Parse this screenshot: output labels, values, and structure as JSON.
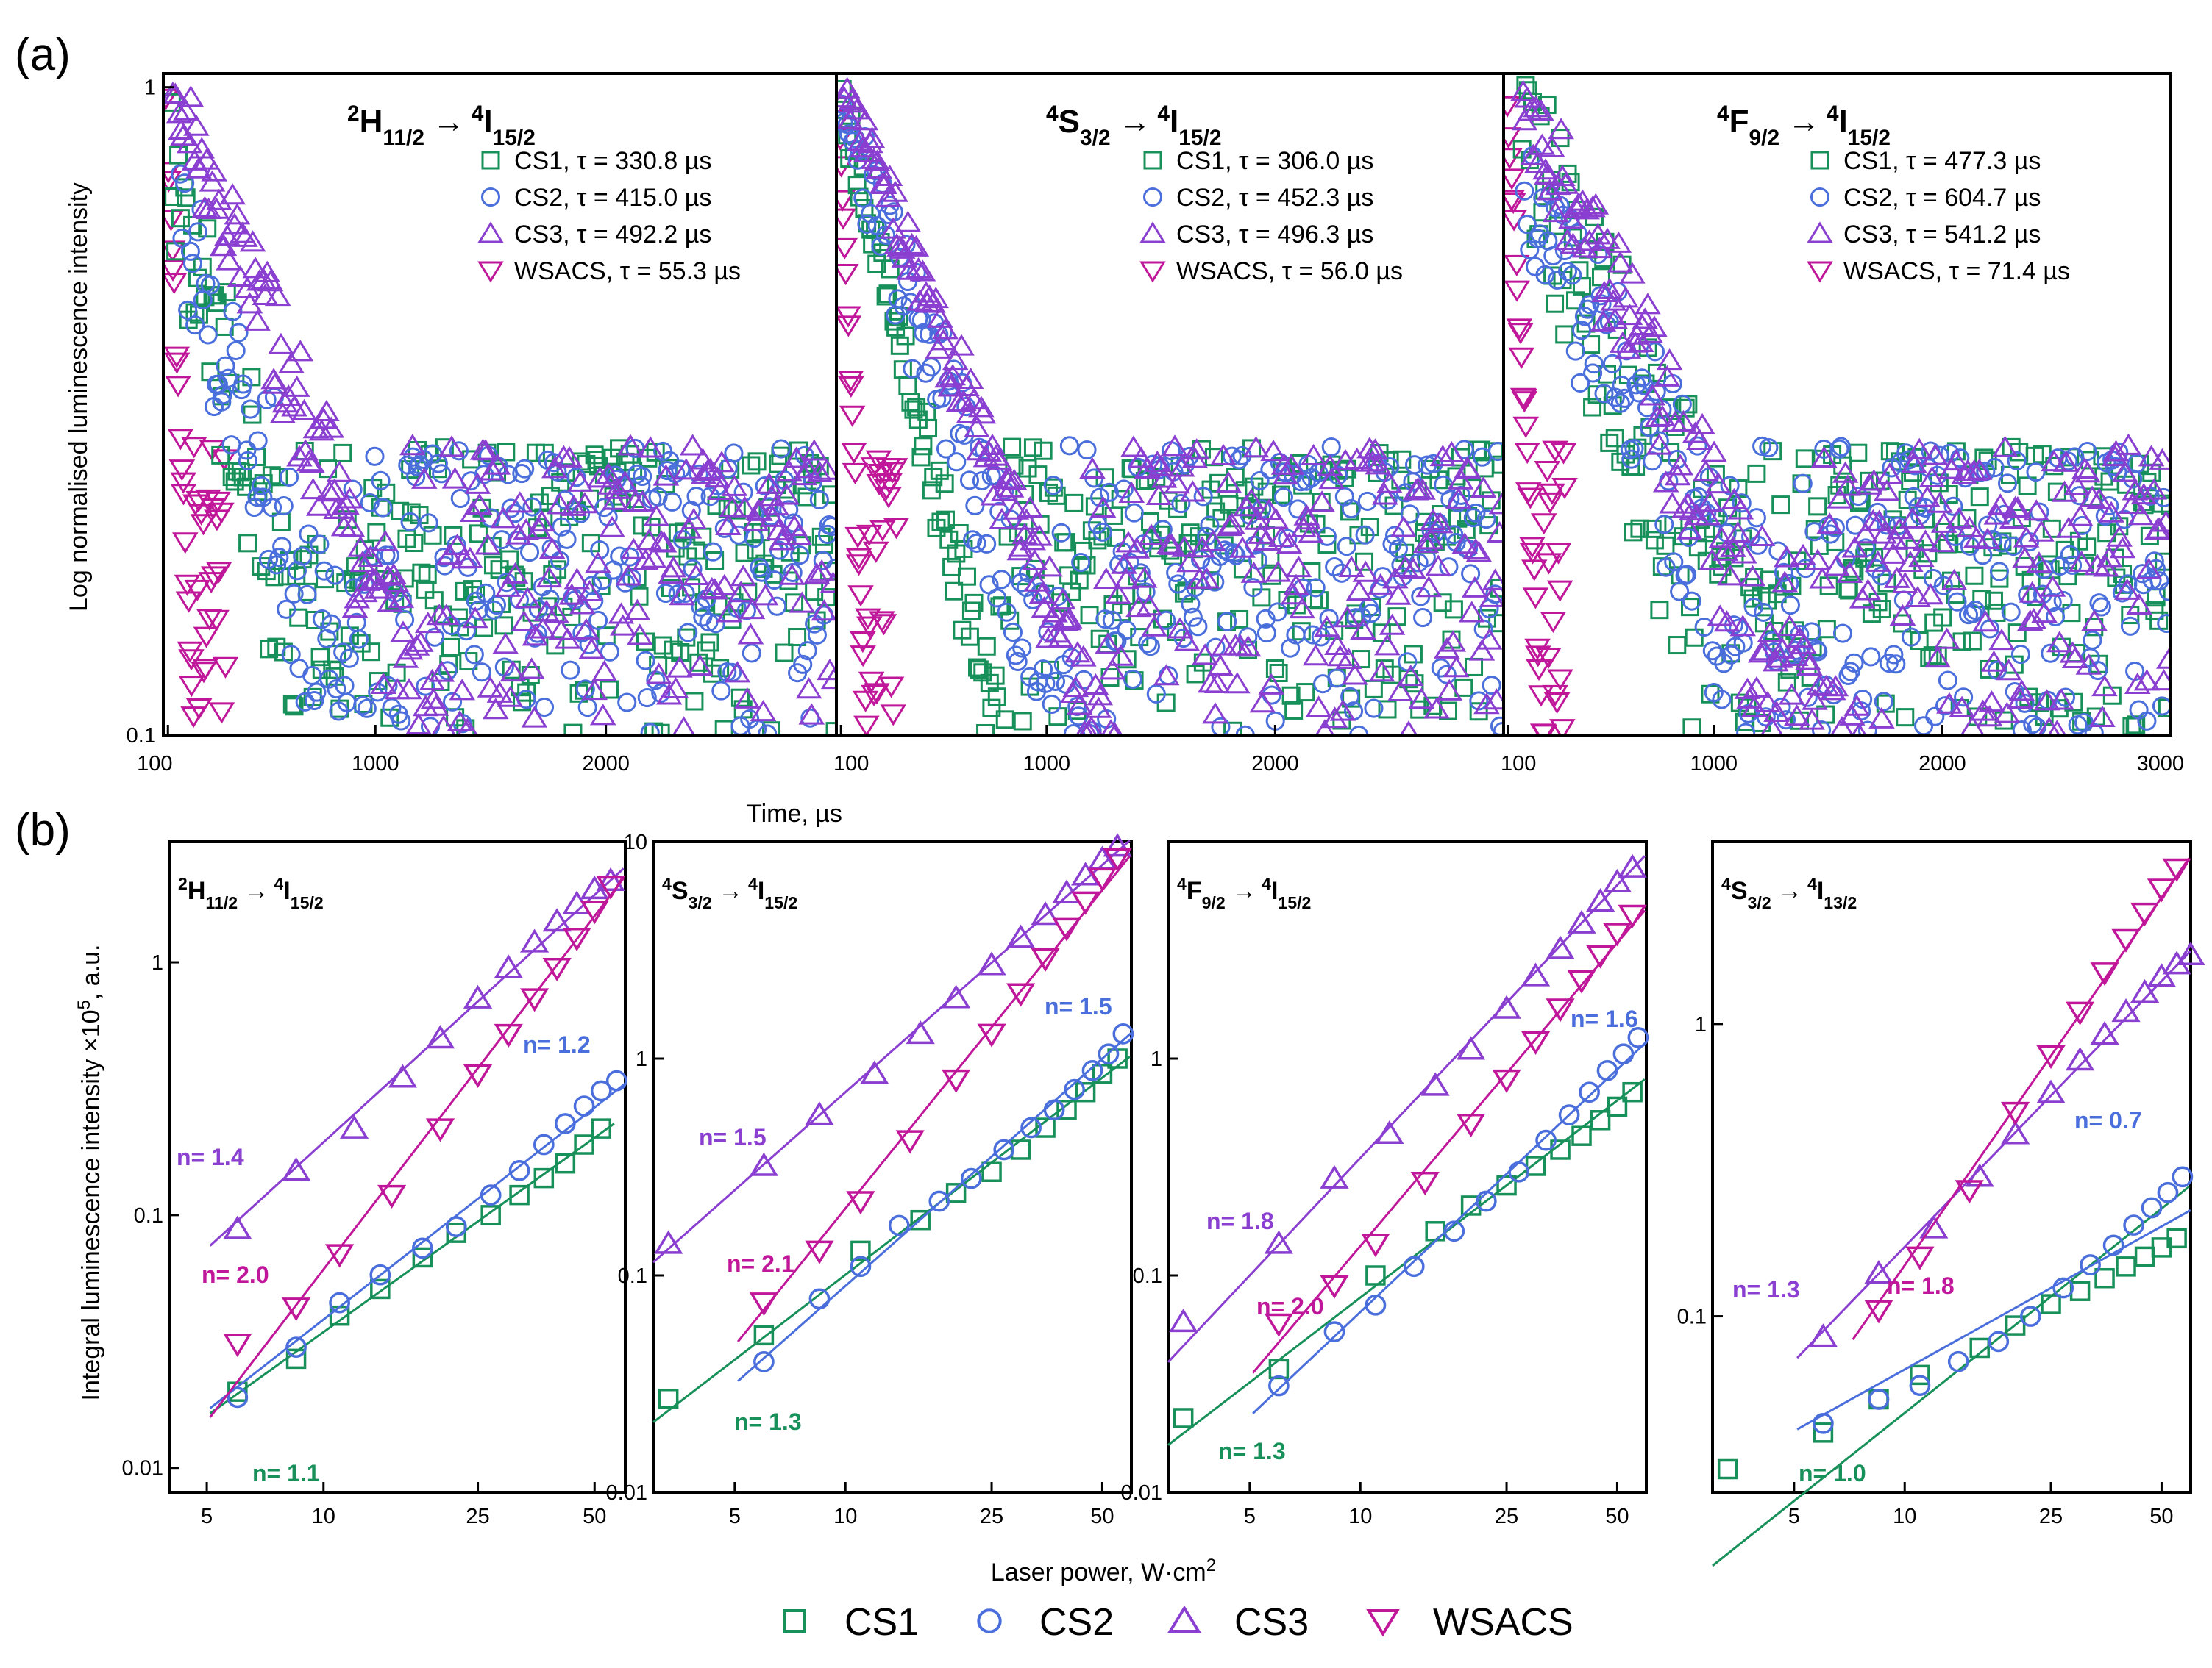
{
  "panel_letters": {
    "a": "(a)",
    "b": "(b)"
  },
  "colors": {
    "CS1": "#17905a",
    "CS2": "#4a6fdc",
    "CS3": "#8a3fd1",
    "WSACS": "#c0179a"
  },
  "icons": {
    "CS1": "square-icon",
    "CS2": "circle-icon",
    "CS3": "triangle-up-icon",
    "WSACS": "triangle-down-icon"
  },
  "arrow": "→",
  "chart_data": [
    {
      "type": "scatter",
      "id": "a1",
      "title": {
        "a": "2",
        "b": "H",
        "c": "11/2",
        "d": "4",
        "e": "I",
        "f": "15/2"
      },
      "xlabel": "Time, µs",
      "ylabel": "Log normalised luminescence intensity",
      "xlim": [
        80,
        3000
      ],
      "ylim": [
        0.1,
        1.05
      ],
      "yscale": "log",
      "xticks": [
        "100",
        "1000",
        "2000"
      ],
      "yticks": [
        "0.1",
        "1"
      ],
      "legend": [
        {
          "series": "CS1",
          "text": "CS1, τ = 330.8 µs"
        },
        {
          "series": "CS2",
          "text": "CS2, τ = 415.0 µs"
        },
        {
          "series": "CS3",
          "text": "CS3, τ = 492.2 µs"
        },
        {
          "series": "WSACS",
          "text": "WSACS, τ = 55.3 µs"
        }
      ],
      "decay": {
        "CS1": {
          "tau": 330.8,
          "peak": 0.74,
          "t0": 110,
          "noise": 0.55
        },
        "CS2": {
          "tau": 415.0,
          "peak": 0.62,
          "t0": 150,
          "noise": 0.5
        },
        "CS3": {
          "tau": 492.2,
          "peak": 1.0,
          "t0": 120,
          "noise": 0.25
        },
        "WSACS": {
          "tau": 55.3,
          "peak": 0.95,
          "t0": 90,
          "noise": 0.08
        }
      }
    },
    {
      "type": "scatter",
      "id": "a2",
      "title": {
        "a": "4",
        "b": "S",
        "c": "3/2",
        "d": "4",
        "e": "I",
        "f": "15/2"
      },
      "xlim": [
        80,
        3000
      ],
      "ylim": [
        0.1,
        1.05
      ],
      "yscale": "log",
      "xticks": [
        "100",
        "1000",
        "2000"
      ],
      "legend": [
        {
          "series": "CS1",
          "text": "CS1, τ = 306.0 µs"
        },
        {
          "series": "CS2",
          "text": "CS2, τ = 452.3 µs"
        },
        {
          "series": "CS3",
          "text": "CS3, τ = 496.3 µs"
        },
        {
          "series": "WSACS",
          "text": "WSACS, τ = 56.0 µs"
        }
      ],
      "decay": {
        "CS1": {
          "tau": 306.0,
          "peak": 0.95,
          "t0": 100,
          "noise": 0.2
        },
        "CS2": {
          "tau": 452.3,
          "peak": 0.9,
          "t0": 100,
          "noise": 0.3
        },
        "CS3": {
          "tau": 496.3,
          "peak": 1.0,
          "t0": 110,
          "noise": 0.15
        },
        "WSACS": {
          "tau": 56.0,
          "peak": 1.0,
          "t0": 85,
          "noise": 0.05
        }
      }
    },
    {
      "type": "scatter",
      "id": "a3",
      "title": {
        "a": "4",
        "b": "F",
        "c": "9/2",
        "d": "4",
        "e": "I",
        "f": "15/2"
      },
      "xlim": [
        80,
        3000
      ],
      "ylim": [
        0.1,
        1.05
      ],
      "yscale": "log",
      "xticks": [
        "100",
        "1000",
        "2000",
        "3000"
      ],
      "legend": [
        {
          "series": "CS1",
          "text": "CS1, τ = 477.3 µs"
        },
        {
          "series": "CS2",
          "text": "CS2, τ = 604.7 µs"
        },
        {
          "series": "CS3",
          "text": "CS3, τ = 541.2 µs"
        },
        {
          "series": "WSACS",
          "text": "WSACS, τ = 71.4 µs"
        }
      ],
      "decay": {
        "CS1": {
          "tau": 477.3,
          "peak": 0.85,
          "t0": 160,
          "noise": 0.6
        },
        "CS2": {
          "tau": 604.7,
          "peak": 0.7,
          "t0": 170,
          "noise": 0.45
        },
        "CS3": {
          "tau": 541.2,
          "peak": 1.0,
          "t0": 160,
          "noise": 0.3
        },
        "WSACS": {
          "tau": 71.4,
          "peak": 1.0,
          "t0": 90,
          "noise": 0.1
        }
      }
    },
    {
      "type": "scatter",
      "id": "b1",
      "title": {
        "a": "2",
        "b": "H",
        "c": "11/2",
        "d": "4",
        "e": "I",
        "f": "15/2"
      },
      "xlabel": "Laser power, W·cm",
      "xlabel_sup": "2",
      "ylabel": "Integral luminescence intensity ×10",
      "ylabel_sup": "5",
      "ylabel_tail": ", a.u.",
      "xscale": "log",
      "yscale": "log",
      "xlim": [
        4,
        60
      ],
      "ylim": [
        0.008,
        3
      ],
      "xticks": [
        "5",
        "10",
        "25",
        "50"
      ],
      "yticks": [
        "0.01",
        "0.1",
        "1"
      ],
      "slopes": [
        {
          "series": "CS3",
          "text": "n= 1.4",
          "n": 1.4
        },
        {
          "series": "WSACS",
          "text": "n= 2.0",
          "n": 2.0
        },
        {
          "series": "CS2",
          "text": "n= 1.2",
          "n": 1.2
        },
        {
          "series": "CS1",
          "text": "n= 1.1",
          "n": 1.1
        }
      ],
      "series": [
        {
          "name": "CS1",
          "x": [
            6,
            8.5,
            11,
            14,
            18,
            22,
            27,
            32,
            37,
            42,
            47,
            52
          ],
          "y": [
            0.02,
            0.027,
            0.04,
            0.051,
            0.068,
            0.085,
            0.1,
            0.12,
            0.14,
            0.16,
            0.19,
            0.22
          ]
        },
        {
          "name": "CS2",
          "x": [
            6,
            8.5,
            11,
            14,
            18,
            22,
            27,
            32,
            37,
            42,
            47,
            52,
            57
          ],
          "y": [
            0.019,
            0.03,
            0.045,
            0.058,
            0.074,
            0.09,
            0.12,
            0.15,
            0.19,
            0.23,
            0.27,
            0.31,
            0.34
          ]
        },
        {
          "name": "CS3",
          "x": [
            6,
            8.5,
            12,
            16,
            20,
            25,
            30,
            35,
            40,
            45,
            50,
            55
          ],
          "y": [
            0.088,
            0.15,
            0.22,
            0.35,
            0.5,
            0.72,
            0.95,
            1.2,
            1.45,
            1.7,
            1.95,
            2.1
          ]
        },
        {
          "name": "WSACS",
          "x": [
            6,
            8.5,
            11,
            15,
            20,
            25,
            30,
            35,
            40,
            45,
            50,
            55
          ],
          "y": [
            0.031,
            0.043,
            0.07,
            0.12,
            0.22,
            0.36,
            0.52,
            0.72,
            0.95,
            1.25,
            1.6,
            2.0
          ]
        }
      ]
    },
    {
      "type": "scatter",
      "id": "b2",
      "title": {
        "a": "4",
        "b": "S",
        "c": "3/2",
        "d": "4",
        "e": "I",
        "f": "15/2"
      },
      "xscale": "log",
      "yscale": "log",
      "xlim": [
        3,
        60
      ],
      "ylim": [
        0.01,
        10
      ],
      "xticks": [
        "5",
        "10",
        "25",
        "50"
      ],
      "yticks": [
        "0.01",
        "0.1",
        "1",
        "10"
      ],
      "slopes": [
        {
          "series": "CS3",
          "text": "n= 1.5",
          "n": 1.5
        },
        {
          "series": "WSACS",
          "text": "n= 2.1",
          "n": 2.1
        },
        {
          "series": "CS2",
          "text": "n= 1.5",
          "n": 1.5
        },
        {
          "series": "CS1",
          "text": "n= 1.3",
          "n": 1.3
        }
      ],
      "series": [
        {
          "name": "CS1",
          "x": [
            3.3,
            6,
            11,
            16,
            20,
            25,
            30,
            35,
            40,
            45,
            50,
            55
          ],
          "y": [
            0.027,
            0.053,
            0.13,
            0.18,
            0.24,
            0.3,
            0.38,
            0.48,
            0.58,
            0.7,
            0.85,
            1.0
          ]
        },
        {
          "name": "CS2",
          "x": [
            6,
            8.5,
            11,
            14,
            18,
            22,
            27,
            32,
            37,
            42,
            47,
            52,
            57
          ],
          "y": [
            0.04,
            0.078,
            0.11,
            0.17,
            0.22,
            0.28,
            0.38,
            0.48,
            0.58,
            0.72,
            0.88,
            1.05,
            1.3
          ]
        },
        {
          "name": "CS3",
          "x": [
            3.3,
            6,
            8.5,
            12,
            16,
            20,
            25,
            30,
            35,
            40,
            45,
            50,
            55
          ],
          "y": [
            0.14,
            0.32,
            0.55,
            0.85,
            1.3,
            1.9,
            2.7,
            3.6,
            4.6,
            5.8,
            7.0,
            8.3,
            9.5
          ]
        },
        {
          "name": "WSACS",
          "x": [
            6,
            8.5,
            11,
            15,
            20,
            25,
            30,
            35,
            40,
            45,
            50,
            55
          ],
          "y": [
            0.075,
            0.13,
            0.22,
            0.42,
            0.8,
            1.3,
            2.0,
            2.9,
            4.0,
            5.3,
            6.8,
            8.4
          ]
        }
      ]
    },
    {
      "type": "scatter",
      "id": "b3",
      "title": {
        "a": "4",
        "b": "F",
        "c": "9/2",
        "d": "4",
        "e": "I",
        "f": "15/2"
      },
      "xscale": "log",
      "yscale": "log",
      "xlim": [
        3,
        60
      ],
      "ylim": [
        0.01,
        10
      ],
      "xticks": [
        "5",
        "10",
        "25",
        "50"
      ],
      "yticks": [
        "0.01",
        "0.1",
        "1"
      ],
      "slopes": [
        {
          "series": "CS3",
          "text": "n= 1.8",
          "n": 1.8
        },
        {
          "series": "WSACS",
          "text": "n= 2.0",
          "n": 2.0
        },
        {
          "series": "CS2",
          "text": "n= 1.6",
          "n": 1.6
        },
        {
          "series": "CS1",
          "text": "n= 1.3",
          "n": 1.3
        }
      ],
      "series": [
        {
          "name": "CS1",
          "x": [
            3.3,
            6,
            11,
            16,
            20,
            25,
            30,
            35,
            40,
            45,
            50,
            55
          ],
          "y": [
            0.022,
            0.037,
            0.1,
            0.16,
            0.21,
            0.26,
            0.32,
            0.38,
            0.44,
            0.52,
            0.6,
            0.7
          ]
        },
        {
          "name": "CS2",
          "x": [
            6,
            8.5,
            11,
            14,
            18,
            22,
            27,
            32,
            37,
            42,
            47,
            52,
            57
          ],
          "y": [
            0.031,
            0.055,
            0.073,
            0.11,
            0.16,
            0.22,
            0.3,
            0.42,
            0.55,
            0.7,
            0.88,
            1.05,
            1.25
          ]
        },
        {
          "name": "CS3",
          "x": [
            3.3,
            6,
            8.5,
            12,
            16,
            20,
            25,
            30,
            35,
            40,
            45,
            50,
            55
          ],
          "y": [
            0.061,
            0.14,
            0.28,
            0.45,
            0.75,
            1.1,
            1.7,
            2.4,
            3.2,
            4.2,
            5.3,
            6.5,
            7.6
          ]
        },
        {
          "name": "WSACS",
          "x": [
            6,
            8.5,
            11,
            15,
            20,
            25,
            30,
            35,
            40,
            45,
            50,
            55
          ],
          "y": [
            0.06,
            0.09,
            0.14,
            0.27,
            0.5,
            0.8,
            1.2,
            1.7,
            2.3,
            3.0,
            3.8,
            4.6
          ]
        }
      ]
    },
    {
      "type": "scatter",
      "id": "b4",
      "title": {
        "a": "4",
        "b": "S",
        "c": "3/2",
        "d": "4",
        "e": "I",
        "f": "13/2"
      },
      "xscale": "log",
      "yscale": "log",
      "xlim": [
        3,
        60
      ],
      "ylim": [
        0.025,
        4.2
      ],
      "xticks": [
        "5",
        "10",
        "25",
        "50"
      ],
      "yticks": [
        "0.1",
        "1"
      ],
      "slopes": [
        {
          "series": "CS3",
          "text": "n= 1.3",
          "n": 1.3
        },
        {
          "series": "WSACS",
          "text": "n= 1.8",
          "n": 1.8
        },
        {
          "series": "CS2",
          "text": "n= 0.7",
          "n": 0.7
        },
        {
          "series": "CS1",
          "text": "n= 1.0",
          "n": 1.0
        }
      ],
      "series": [
        {
          "name": "CS1",
          "x": [
            3.3,
            6,
            8.5,
            11,
            16,
            20,
            25,
            30,
            35,
            40,
            45,
            50,
            55
          ],
          "y": [
            0.03,
            0.04,
            0.052,
            0.063,
            0.078,
            0.093,
            0.11,
            0.122,
            0.135,
            0.148,
            0.16,
            0.172,
            0.185
          ]
        },
        {
          "name": "CS2",
          "x": [
            6,
            8.5,
            11,
            14,
            18,
            22,
            27,
            32,
            37,
            42,
            47,
            52,
            57
          ],
          "y": [
            0.043,
            0.052,
            0.058,
            0.07,
            0.082,
            0.1,
            0.125,
            0.15,
            0.175,
            0.205,
            0.235,
            0.265,
            0.3
          ]
        },
        {
          "name": "CS3",
          "x": [
            6,
            8.5,
            12,
            16,
            20,
            25,
            30,
            35,
            40,
            45,
            50,
            55,
            60
          ],
          "y": [
            0.085,
            0.14,
            0.2,
            0.3,
            0.42,
            0.58,
            0.75,
            0.92,
            1.1,
            1.28,
            1.45,
            1.6,
            1.72
          ]
        },
        {
          "name": "WSACS",
          "x": [
            8.5,
            11,
            15,
            20,
            25,
            30,
            35,
            40,
            45,
            50,
            55
          ],
          "y": [
            0.105,
            0.16,
            0.27,
            0.5,
            0.78,
            1.1,
            1.5,
            1.95,
            2.4,
            2.9,
            3.4
          ]
        }
      ]
    }
  ],
  "bottom_legend": [
    {
      "series": "CS1",
      "label": "CS1"
    },
    {
      "series": "CS2",
      "label": "CS2"
    },
    {
      "series": "CS3",
      "label": "CS3"
    },
    {
      "series": "WSACS",
      "label": "WSACS"
    }
  ]
}
